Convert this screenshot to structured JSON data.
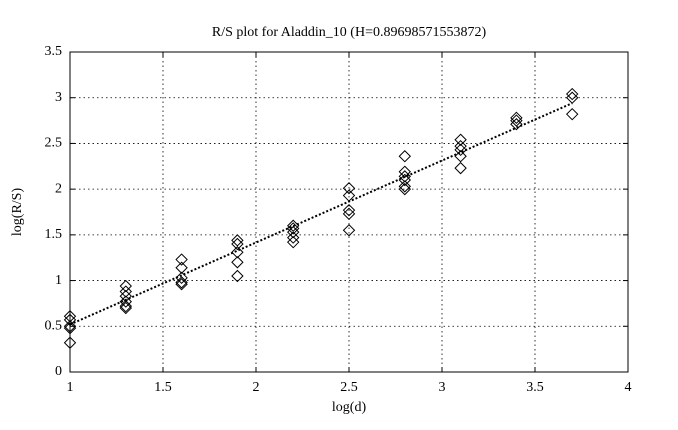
{
  "chart_data": {
    "type": "scatter",
    "title": "R/S plot for Aladdin_10 (H=0.89698571553872)",
    "x_label": "log(d)",
    "y_label": "log(R/S)",
    "xlim": [
      1,
      4
    ],
    "xticks": [
      1,
      1.5,
      2,
      2.5,
      3,
      3.5,
      4
    ],
    "ylim": [
      0,
      3.5
    ],
    "yticks": [
      0,
      0.5,
      1,
      1.5,
      2,
      2.5,
      3,
      3.5
    ],
    "grid": true,
    "series": [
      {
        "type": "scatter",
        "marker": "diamond",
        "color": "#000000",
        "x": [
          1,
          1,
          1,
          1,
          1,
          1.3,
          1.3,
          1.3,
          1.3,
          1.3,
          1.3,
          1.6,
          1.6,
          1.6,
          1.6,
          1.6,
          1.9,
          1.9,
          1.9,
          1.9,
          1.9,
          2.2,
          2.2,
          2.2,
          2.2,
          2.2,
          2.5,
          2.5,
          2.5,
          2.5,
          2.5,
          2.8,
          2.8,
          2.8,
          2.8,
          2.8,
          2.8,
          3.1,
          3.1,
          3.1,
          3.1,
          3.1,
          3.4,
          3.4,
          3.4,
          3.7,
          3.7,
          3.7
        ],
        "values": [
          0.61,
          0.57,
          0.5,
          0.48,
          0.32,
          0.94,
          0.88,
          0.83,
          0.77,
          0.72,
          0.7,
          1.23,
          1.14,
          1.03,
          0.98,
          0.96,
          1.44,
          1.4,
          1.31,
          1.2,
          1.05,
          1.6,
          1.57,
          1.53,
          1.47,
          1.42,
          2.01,
          1.93,
          1.77,
          1.73,
          1.55,
          2.36,
          2.19,
          2.14,
          2.1,
          2.03,
          2.0,
          2.54,
          2.47,
          2.43,
          2.36,
          2.23,
          2.78,
          2.75,
          2.71,
          3.04,
          3.0,
          2.82
        ]
      },
      {
        "type": "line",
        "style": "dotted",
        "color": "#000000",
        "x": [
          1,
          3.7
        ],
        "values": [
          0.52,
          2.94
        ]
      }
    ]
  }
}
